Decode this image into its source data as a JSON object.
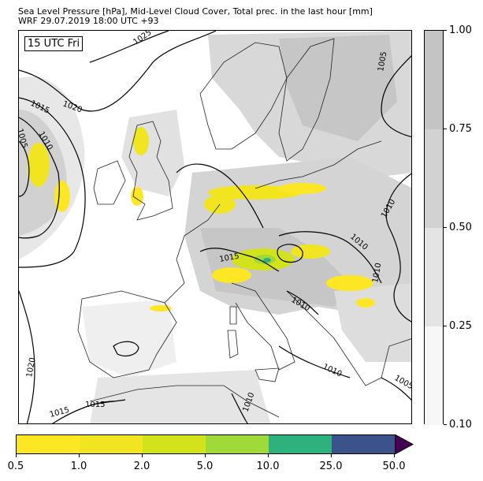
{
  "title_line1": "Sea Level Pressure [hPa], Mid-Level Cloud Cover, Total prec. in the last hour [mm]",
  "title_line2": "WRF 29.07.2019 18:00 UTC +93",
  "valid_time": "15 UTC Fri",
  "cloud_colorbar": {
    "labels": [
      "0.10",
      "0.25",
      "0.50",
      "0.75",
      "1.00"
    ],
    "colors": [
      "#f7f7f7",
      "#e4e4e4",
      "#d2d2d2",
      "#c4c4c4"
    ]
  },
  "precip_colorbar": {
    "labels": [
      "0.5",
      "1.0",
      "2.0",
      "5.0",
      "10.0",
      "25.0",
      "50.0"
    ],
    "colors": [
      "#fde725",
      "#f0e520",
      "#d2e21b",
      "#a0da39",
      "#2db27d",
      "#3b528b",
      "#440154"
    ]
  },
  "isobar_labels": [
    "1025",
    "1020",
    "1015",
    "1010",
    "1005",
    "1015",
    "1010",
    "1010",
    "1005",
    "1010",
    "1015",
    "1010",
    "1020",
    "1015",
    "1015",
    "1010",
    "1010",
    "1005"
  ]
}
